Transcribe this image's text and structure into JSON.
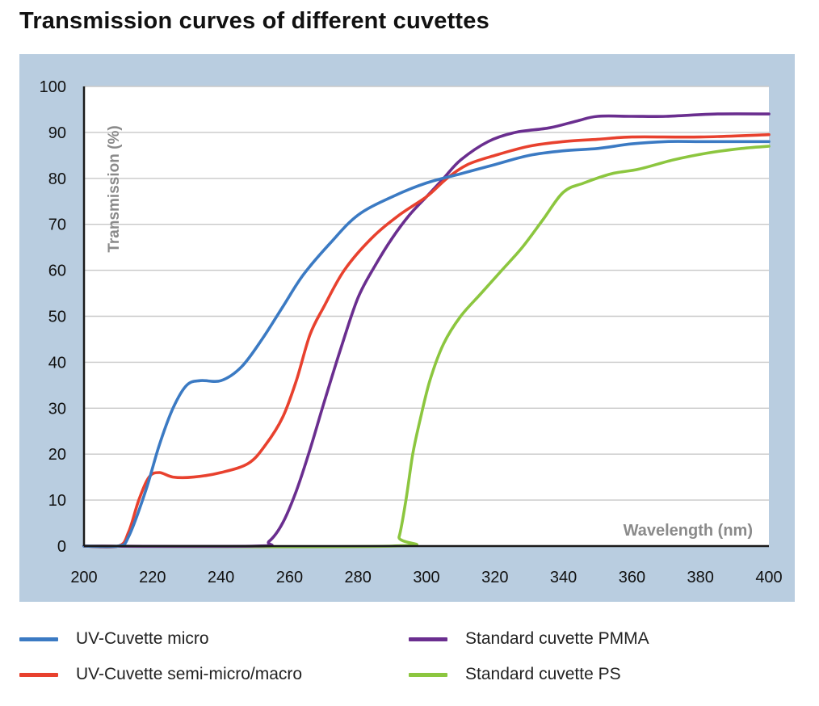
{
  "chart_data": {
    "type": "line",
    "title": "Transmission curves of different cuvettes",
    "xlabel": "Wavelength (nm)",
    "ylabel": "Transmission (%)",
    "xlim": [
      200,
      400
    ],
    "ylim": [
      0,
      100
    ],
    "xticks": [
      200,
      220,
      240,
      260,
      280,
      300,
      320,
      340,
      360,
      380,
      400
    ],
    "yticks": [
      0,
      10,
      20,
      30,
      40,
      50,
      60,
      70,
      80,
      90,
      100
    ],
    "grid": "horizontal",
    "legend": "bottom",
    "series": [
      {
        "name": "UV-Cuvette micro",
        "color": "#3b7ac3",
        "points": [
          [
            200,
            0
          ],
          [
            210,
            0
          ],
          [
            213,
            2
          ],
          [
            218,
            12
          ],
          [
            222,
            22
          ],
          [
            226,
            30
          ],
          [
            230,
            35
          ],
          [
            234,
            36
          ],
          [
            240,
            36
          ],
          [
            246,
            39
          ],
          [
            252,
            45
          ],
          [
            258,
            52
          ],
          [
            264,
            59
          ],
          [
            272,
            66
          ],
          [
            280,
            72
          ],
          [
            290,
            76
          ],
          [
            300,
            79
          ],
          [
            310,
            81
          ],
          [
            320,
            83
          ],
          [
            330,
            85
          ],
          [
            340,
            86
          ],
          [
            350,
            86.5
          ],
          [
            360,
            87.5
          ],
          [
            370,
            88
          ],
          [
            380,
            88
          ],
          [
            390,
            88
          ],
          [
            400,
            88
          ]
        ]
      },
      {
        "name": "UV-Cuvette semi-micro/macro",
        "color": "#e8412e",
        "points": [
          [
            200,
            0
          ],
          [
            210,
            0
          ],
          [
            213,
            3
          ],
          [
            216,
            10
          ],
          [
            219,
            15
          ],
          [
            222,
            16
          ],
          [
            226,
            15
          ],
          [
            232,
            15
          ],
          [
            240,
            16
          ],
          [
            248,
            18
          ],
          [
            253,
            22
          ],
          [
            258,
            28
          ],
          [
            262,
            36
          ],
          [
            266,
            46
          ],
          [
            270,
            52
          ],
          [
            276,
            60
          ],
          [
            284,
            67
          ],
          [
            292,
            72
          ],
          [
            300,
            76
          ],
          [
            306,
            80
          ],
          [
            312,
            83
          ],
          [
            320,
            85
          ],
          [
            330,
            87
          ],
          [
            340,
            88
          ],
          [
            350,
            88.5
          ],
          [
            360,
            89
          ],
          [
            380,
            89
          ],
          [
            400,
            89.5
          ]
        ]
      },
      {
        "name": "Standard cuvette PMMA",
        "color": "#6a2e8f",
        "points": [
          [
            200,
            0
          ],
          [
            250,
            0
          ],
          [
            254,
            1
          ],
          [
            258,
            5
          ],
          [
            262,
            12
          ],
          [
            266,
            21
          ],
          [
            270,
            31
          ],
          [
            275,
            43
          ],
          [
            280,
            54
          ],
          [
            285,
            61
          ],
          [
            290,
            67
          ],
          [
            295,
            72
          ],
          [
            300,
            76
          ],
          [
            305,
            80
          ],
          [
            310,
            84
          ],
          [
            318,
            88
          ],
          [
            326,
            90
          ],
          [
            336,
            91
          ],
          [
            344,
            92.5
          ],
          [
            350,
            93.5
          ],
          [
            360,
            93.5
          ],
          [
            370,
            93.5
          ],
          [
            385,
            94
          ],
          [
            400,
            94
          ]
        ]
      },
      {
        "name": "Standard cuvette PS",
        "color": "#8cc63f",
        "points": [
          [
            200,
            0
          ],
          [
            290,
            0
          ],
          [
            292,
            2
          ],
          [
            294,
            10
          ],
          [
            296,
            20
          ],
          [
            298,
            27
          ],
          [
            301,
            36
          ],
          [
            305,
            44
          ],
          [
            310,
            50
          ],
          [
            316,
            55
          ],
          [
            322,
            60
          ],
          [
            328,
            65
          ],
          [
            334,
            71
          ],
          [
            340,
            77
          ],
          [
            346,
            79
          ],
          [
            354,
            81
          ],
          [
            362,
            82
          ],
          [
            372,
            84
          ],
          [
            382,
            85.5
          ],
          [
            392,
            86.5
          ],
          [
            400,
            87
          ]
        ]
      }
    ]
  }
}
